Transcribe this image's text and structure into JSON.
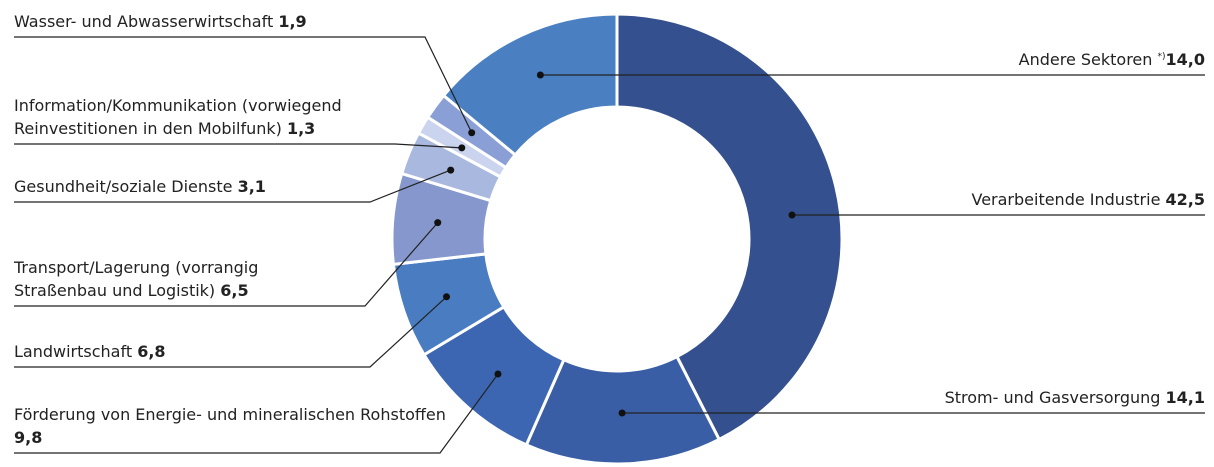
{
  "chart_data": {
    "type": "donut",
    "categories": [
      "Verarbeitende Industrie",
      "Strom- und Gasversorgung",
      "Förderung von Energie- und mineralischen Rohstoffen",
      "Landwirtschaft",
      "Transport/Lagerung (vorrangig Straßenbau und Logistik)",
      "Gesundheit/soziale Dienste",
      "Information/Kommunikation (vorwiegend Reinvestitionen in den Mobilfunk)",
      "Wasser- und Abwasserwirtschaft",
      "Andere Sektoren"
    ],
    "category_notes": [
      null,
      null,
      null,
      null,
      null,
      null,
      null,
      null,
      "*)"
    ],
    "values": [
      42.5,
      14.1,
      9.8,
      6.8,
      6.5,
      3.1,
      1.3,
      1.9,
      14.0
    ],
    "value_labels": [
      "42,5",
      "14,1",
      "9,8",
      "6,8",
      "6,5",
      "3,1",
      "1,3",
      "1,9",
      "14,0"
    ],
    "colors": [
      "#34508e",
      "#3a5ea6",
      "#3d66b2",
      "#4a7cc2",
      "#8597cc",
      "#a9b8de",
      "#cad4ee",
      "#8a9fd6",
      "#4a7fc2"
    ]
  }
}
